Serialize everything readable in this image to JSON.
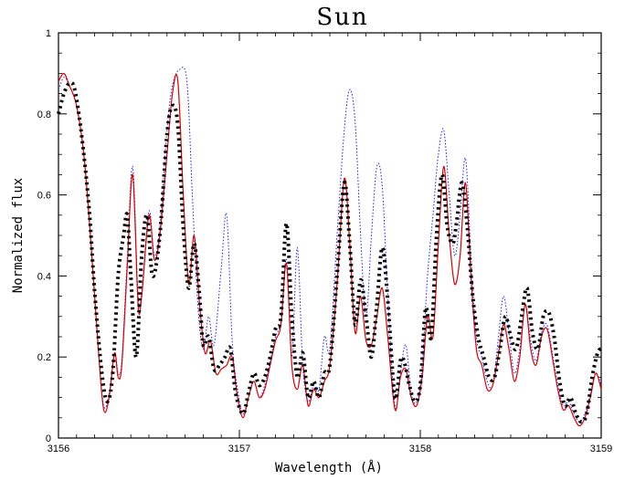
{
  "chart_data": {
    "type": "line",
    "title": "Sun",
    "xlabel": "Wavelength (Å)",
    "ylabel": "Normalized flux",
    "xlim": [
      3156,
      3159
    ],
    "ylim": [
      0,
      1
    ],
    "x_ticks": [
      3156,
      3157,
      3158,
      3159
    ],
    "y_ticks": [
      0,
      0.2,
      0.4,
      0.6,
      0.8,
      1
    ],
    "grid": false,
    "legend": "none",
    "series": [
      {
        "style": "black-dotted-thick",
        "color": "#000000",
        "points": [
          [
            3156.0,
            0.8
          ],
          [
            3156.03,
            0.85
          ],
          [
            3156.06,
            0.875
          ],
          [
            3156.09,
            0.86
          ],
          [
            3156.13,
            0.74
          ],
          [
            3156.17,
            0.56
          ],
          [
            3156.2,
            0.36
          ],
          [
            3156.24,
            0.16
          ],
          [
            3156.27,
            0.09
          ],
          [
            3156.3,
            0.16
          ],
          [
            3156.33,
            0.4
          ],
          [
            3156.36,
            0.5
          ],
          [
            3156.38,
            0.55
          ],
          [
            3156.4,
            0.4
          ],
          [
            3156.43,
            0.2
          ],
          [
            3156.46,
            0.45
          ],
          [
            3156.49,
            0.55
          ],
          [
            3156.52,
            0.4
          ],
          [
            3156.56,
            0.5
          ],
          [
            3156.6,
            0.75
          ],
          [
            3156.63,
            0.82
          ],
          [
            3156.66,
            0.77
          ],
          [
            3156.69,
            0.52
          ],
          [
            3156.72,
            0.37
          ],
          [
            3156.75,
            0.48
          ],
          [
            3156.78,
            0.35
          ],
          [
            3156.8,
            0.23
          ],
          [
            3156.83,
            0.25
          ],
          [
            3156.86,
            0.17
          ],
          [
            3156.89,
            0.18
          ],
          [
            3156.92,
            0.2
          ],
          [
            3156.95,
            0.22
          ],
          [
            3156.98,
            0.11
          ],
          [
            3157.02,
            0.06
          ],
          [
            3157.05,
            0.11
          ],
          [
            3157.08,
            0.16
          ],
          [
            3157.11,
            0.13
          ],
          [
            3157.14,
            0.15
          ],
          [
            3157.17,
            0.2
          ],
          [
            3157.2,
            0.27
          ],
          [
            3157.23,
            0.3
          ],
          [
            3157.26,
            0.53
          ],
          [
            3157.29,
            0.3
          ],
          [
            3157.32,
            0.15
          ],
          [
            3157.35,
            0.21
          ],
          [
            3157.38,
            0.1
          ],
          [
            3157.41,
            0.14
          ],
          [
            3157.44,
            0.1
          ],
          [
            3157.47,
            0.16
          ],
          [
            3157.5,
            0.18
          ],
          [
            3157.54,
            0.4
          ],
          [
            3157.58,
            0.63
          ],
          [
            3157.61,
            0.48
          ],
          [
            3157.64,
            0.28
          ],
          [
            3157.67,
            0.39
          ],
          [
            3157.7,
            0.3
          ],
          [
            3157.73,
            0.2
          ],
          [
            3157.76,
            0.33
          ],
          [
            3157.79,
            0.47
          ],
          [
            3157.82,
            0.34
          ],
          [
            3157.86,
            0.1
          ],
          [
            3157.89,
            0.19
          ],
          [
            3157.91,
            0.19
          ],
          [
            3157.94,
            0.13
          ],
          [
            3157.97,
            0.09
          ],
          [
            3158.0,
            0.13
          ],
          [
            3158.03,
            0.32
          ],
          [
            3158.06,
            0.25
          ],
          [
            3158.09,
            0.5
          ],
          [
            3158.12,
            0.65
          ],
          [
            3158.15,
            0.52
          ],
          [
            3158.18,
            0.48
          ],
          [
            3158.2,
            0.53
          ],
          [
            3158.23,
            0.63
          ],
          [
            3158.26,
            0.52
          ],
          [
            3158.29,
            0.35
          ],
          [
            3158.32,
            0.25
          ],
          [
            3158.35,
            0.2
          ],
          [
            3158.38,
            0.15
          ],
          [
            3158.41,
            0.15
          ],
          [
            3158.44,
            0.22
          ],
          [
            3158.47,
            0.3
          ],
          [
            3158.5,
            0.25
          ],
          [
            3158.53,
            0.22
          ],
          [
            3158.56,
            0.3
          ],
          [
            3158.59,
            0.37
          ],
          [
            3158.62,
            0.26
          ],
          [
            3158.65,
            0.22
          ],
          [
            3158.68,
            0.3
          ],
          [
            3158.71,
            0.31
          ],
          [
            3158.74,
            0.25
          ],
          [
            3158.77,
            0.14
          ],
          [
            3158.8,
            0.08
          ],
          [
            3158.83,
            0.1
          ],
          [
            3158.86,
            0.06
          ],
          [
            3158.89,
            0.04
          ],
          [
            3158.92,
            0.06
          ],
          [
            3158.95,
            0.15
          ],
          [
            3158.98,
            0.21
          ],
          [
            3159.0,
            0.22
          ]
        ]
      },
      {
        "style": "red-solid",
        "color": "#dd0000",
        "points": [
          [
            3156.0,
            0.88
          ],
          [
            3156.03,
            0.9
          ],
          [
            3156.06,
            0.87
          ],
          [
            3156.1,
            0.82
          ],
          [
            3156.14,
            0.7
          ],
          [
            3156.18,
            0.48
          ],
          [
            3156.22,
            0.22
          ],
          [
            3156.25,
            0.07
          ],
          [
            3156.28,
            0.1
          ],
          [
            3156.31,
            0.21
          ],
          [
            3156.33,
            0.15
          ],
          [
            3156.35,
            0.18
          ],
          [
            3156.38,
            0.42
          ],
          [
            3156.41,
            0.65
          ],
          [
            3156.44,
            0.33
          ],
          [
            3156.46,
            0.35
          ],
          [
            3156.5,
            0.55
          ],
          [
            3156.53,
            0.44
          ],
          [
            3156.56,
            0.5
          ],
          [
            3156.6,
            0.7
          ],
          [
            3156.63,
            0.85
          ],
          [
            3156.66,
            0.88
          ],
          [
            3156.69,
            0.6
          ],
          [
            3156.72,
            0.38
          ],
          [
            3156.75,
            0.5
          ],
          [
            3156.78,
            0.33
          ],
          [
            3156.81,
            0.21
          ],
          [
            3156.84,
            0.24
          ],
          [
            3156.87,
            0.16
          ],
          [
            3156.9,
            0.17
          ],
          [
            3156.93,
            0.18
          ],
          [
            3156.96,
            0.2
          ],
          [
            3156.99,
            0.1
          ],
          [
            3157.02,
            0.05
          ],
          [
            3157.05,
            0.1
          ],
          [
            3157.08,
            0.14
          ],
          [
            3157.11,
            0.1
          ],
          [
            3157.14,
            0.12
          ],
          [
            3157.17,
            0.18
          ],
          [
            3157.2,
            0.24
          ],
          [
            3157.23,
            0.28
          ],
          [
            3157.26,
            0.43
          ],
          [
            3157.29,
            0.18
          ],
          [
            3157.32,
            0.12
          ],
          [
            3157.35,
            0.18
          ],
          [
            3157.38,
            0.08
          ],
          [
            3157.41,
            0.12
          ],
          [
            3157.44,
            0.1
          ],
          [
            3157.47,
            0.14
          ],
          [
            3157.5,
            0.18
          ],
          [
            3157.54,
            0.38
          ],
          [
            3157.58,
            0.64
          ],
          [
            3157.61,
            0.48
          ],
          [
            3157.64,
            0.26
          ],
          [
            3157.67,
            0.35
          ],
          [
            3157.7,
            0.24
          ],
          [
            3157.73,
            0.23
          ],
          [
            3157.76,
            0.3
          ],
          [
            3157.79,
            0.37
          ],
          [
            3157.82,
            0.25
          ],
          [
            3157.86,
            0.07
          ],
          [
            3157.89,
            0.15
          ],
          [
            3157.92,
            0.17
          ],
          [
            3157.95,
            0.1
          ],
          [
            3157.98,
            0.08
          ],
          [
            3158.01,
            0.15
          ],
          [
            3158.04,
            0.3
          ],
          [
            3158.07,
            0.25
          ],
          [
            3158.1,
            0.48
          ],
          [
            3158.13,
            0.67
          ],
          [
            3158.16,
            0.5
          ],
          [
            3158.19,
            0.38
          ],
          [
            3158.22,
            0.45
          ],
          [
            3158.25,
            0.63
          ],
          [
            3158.28,
            0.4
          ],
          [
            3158.31,
            0.22
          ],
          [
            3158.34,
            0.18
          ],
          [
            3158.37,
            0.12
          ],
          [
            3158.4,
            0.13
          ],
          [
            3158.43,
            0.2
          ],
          [
            3158.46,
            0.28
          ],
          [
            3158.49,
            0.22
          ],
          [
            3158.52,
            0.14
          ],
          [
            3158.55,
            0.2
          ],
          [
            3158.58,
            0.33
          ],
          [
            3158.61,
            0.22
          ],
          [
            3158.64,
            0.18
          ],
          [
            3158.67,
            0.25
          ],
          [
            3158.7,
            0.27
          ],
          [
            3158.73,
            0.2
          ],
          [
            3158.76,
            0.12
          ],
          [
            3158.79,
            0.07
          ],
          [
            3158.82,
            0.08
          ],
          [
            3158.85,
            0.05
          ],
          [
            3158.88,
            0.03
          ],
          [
            3158.91,
            0.05
          ],
          [
            3158.94,
            0.1
          ],
          [
            3158.97,
            0.16
          ],
          [
            3159.0,
            0.12
          ]
        ]
      },
      {
        "style": "blue-dotted-thin",
        "color": "#1a1aff",
        "points": [
          [
            3156.0,
            0.86
          ],
          [
            3156.03,
            0.89
          ],
          [
            3156.06,
            0.87
          ],
          [
            3156.1,
            0.82
          ],
          [
            3156.14,
            0.7
          ],
          [
            3156.18,
            0.48
          ],
          [
            3156.22,
            0.22
          ],
          [
            3156.25,
            0.08
          ],
          [
            3156.28,
            0.11
          ],
          [
            3156.31,
            0.21
          ],
          [
            3156.33,
            0.16
          ],
          [
            3156.35,
            0.19
          ],
          [
            3156.38,
            0.44
          ],
          [
            3156.41,
            0.67
          ],
          [
            3156.44,
            0.35
          ],
          [
            3156.46,
            0.36
          ],
          [
            3156.5,
            0.56
          ],
          [
            3156.53,
            0.45
          ],
          [
            3156.56,
            0.52
          ],
          [
            3156.6,
            0.76
          ],
          [
            3156.63,
            0.87
          ],
          [
            3156.67,
            0.91
          ],
          [
            3156.71,
            0.88
          ],
          [
            3156.74,
            0.6
          ],
          [
            3156.77,
            0.33
          ],
          [
            3156.8,
            0.22
          ],
          [
            3156.83,
            0.3
          ],
          [
            3156.86,
            0.23
          ],
          [
            3156.9,
            0.42
          ],
          [
            3156.93,
            0.55
          ],
          [
            3156.96,
            0.24
          ],
          [
            3156.99,
            0.12
          ],
          [
            3157.02,
            0.06
          ],
          [
            3157.05,
            0.1
          ],
          [
            3157.08,
            0.14
          ],
          [
            3157.11,
            0.1
          ],
          [
            3157.14,
            0.13
          ],
          [
            3157.17,
            0.19
          ],
          [
            3157.2,
            0.25
          ],
          [
            3157.23,
            0.29
          ],
          [
            3157.26,
            0.44
          ],
          [
            3157.29,
            0.2
          ],
          [
            3157.32,
            0.47
          ],
          [
            3157.35,
            0.18
          ],
          [
            3157.38,
            0.09
          ],
          [
            3157.41,
            0.13
          ],
          [
            3157.44,
            0.12
          ],
          [
            3157.47,
            0.25
          ],
          [
            3157.5,
            0.22
          ],
          [
            3157.54,
            0.5
          ],
          [
            3157.58,
            0.76
          ],
          [
            3157.61,
            0.86
          ],
          [
            3157.64,
            0.78
          ],
          [
            3157.67,
            0.5
          ],
          [
            3157.7,
            0.3
          ],
          [
            3157.73,
            0.5
          ],
          [
            3157.76,
            0.67
          ],
          [
            3157.79,
            0.62
          ],
          [
            3157.82,
            0.35
          ],
          [
            3157.86,
            0.08
          ],
          [
            3157.89,
            0.16
          ],
          [
            3157.92,
            0.23
          ],
          [
            3157.95,
            0.11
          ],
          [
            3157.98,
            0.09
          ],
          [
            3158.01,
            0.18
          ],
          [
            3158.04,
            0.4
          ],
          [
            3158.07,
            0.55
          ],
          [
            3158.1,
            0.7
          ],
          [
            3158.13,
            0.76
          ],
          [
            3158.16,
            0.6
          ],
          [
            3158.19,
            0.45
          ],
          [
            3158.22,
            0.55
          ],
          [
            3158.25,
            0.69
          ],
          [
            3158.28,
            0.45
          ],
          [
            3158.31,
            0.25
          ],
          [
            3158.34,
            0.2
          ],
          [
            3158.37,
            0.14
          ],
          [
            3158.4,
            0.13
          ],
          [
            3158.43,
            0.24
          ],
          [
            3158.46,
            0.35
          ],
          [
            3158.49,
            0.26
          ],
          [
            3158.52,
            0.16
          ],
          [
            3158.55,
            0.22
          ],
          [
            3158.58,
            0.33
          ],
          [
            3158.61,
            0.24
          ],
          [
            3158.64,
            0.19
          ],
          [
            3158.67,
            0.26
          ],
          [
            3158.7,
            0.28
          ],
          [
            3158.73,
            0.21
          ],
          [
            3158.76,
            0.13
          ],
          [
            3158.79,
            0.08
          ],
          [
            3158.82,
            0.09
          ],
          [
            3158.85,
            0.06
          ],
          [
            3158.88,
            0.04
          ],
          [
            3158.91,
            0.06
          ],
          [
            3158.94,
            0.11
          ],
          [
            3158.97,
            0.16
          ],
          [
            3159.0,
            0.13
          ]
        ]
      }
    ]
  }
}
